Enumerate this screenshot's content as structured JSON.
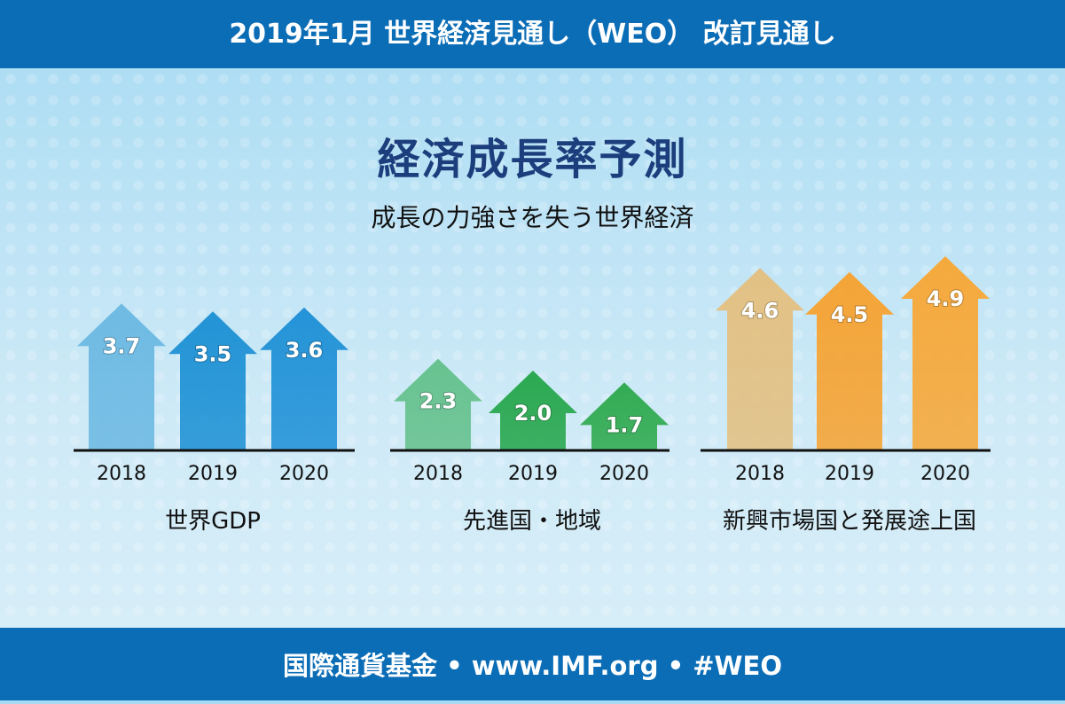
{
  "header": {
    "title": "2019年1月 世界経済見通し（WEO） 改訂見通し"
  },
  "main": {
    "title": "経済成長率予測",
    "subtitle": "成長の力強さを失う世界経済"
  },
  "footer": {
    "text": "国際通貨基金 • www.IMF.org • #WEO"
  },
  "chart_data": [
    {
      "type": "bar",
      "title": "世界GDP",
      "categories": [
        "2018",
        "2019",
        "2020"
      ],
      "values": [
        3.7,
        3.5,
        3.6
      ],
      "colors": [
        "#6ab8e2",
        "#1a8fd4",
        "#1c8fd6"
      ]
    },
    {
      "type": "bar",
      "title": "先進国・地域",
      "categories": [
        "2018",
        "2019",
        "2020"
      ],
      "values": [
        2.3,
        2.0,
        1.7
      ],
      "colors": [
        "#62c08a",
        "#22a548",
        "#2aa84a"
      ]
    },
    {
      "type": "bar",
      "title": "新興市場国と発展途上国",
      "categories": [
        "2018",
        "2019",
        "2020"
      ],
      "values": [
        4.6,
        4.5,
        4.9
      ],
      "colors": [
        "#e4bf7e",
        "#f7a12d",
        "#f8a633"
      ]
    }
  ]
}
